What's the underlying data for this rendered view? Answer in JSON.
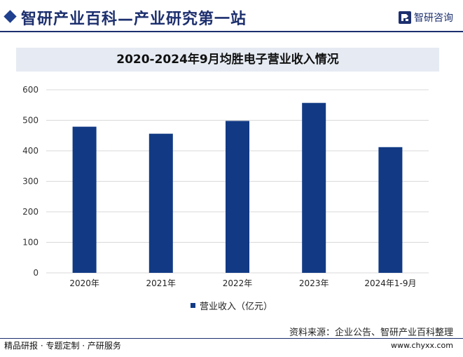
{
  "header": {
    "title": "智研产业百科—产业研究第一站",
    "brand": "智研咨询"
  },
  "chart_data": {
    "type": "bar",
    "title": "2020-2024年9月均胜电子营业收入情况",
    "categories": [
      "2020年",
      "2021年",
      "2022年",
      "2023年",
      "2024年1-9月"
    ],
    "series": [
      {
        "name": "营业收入（亿元）",
        "values": [
          479,
          456,
          498,
          557,
          412
        ],
        "color": "#123a84"
      }
    ],
    "y_ticks": [
      "0",
      "100",
      "200",
      "300",
      "400",
      "500",
      "600"
    ],
    "ylim": [
      0,
      600
    ],
    "grid": true,
    "legend_position": "bottom",
    "xlabel": "",
    "ylabel": ""
  },
  "footer": {
    "source": "资料来源：企业公告、智研产业百科整理",
    "left_text": "精品研报 · 专题定制 · 产研服务",
    "site_url": "www.chyxx.com"
  }
}
